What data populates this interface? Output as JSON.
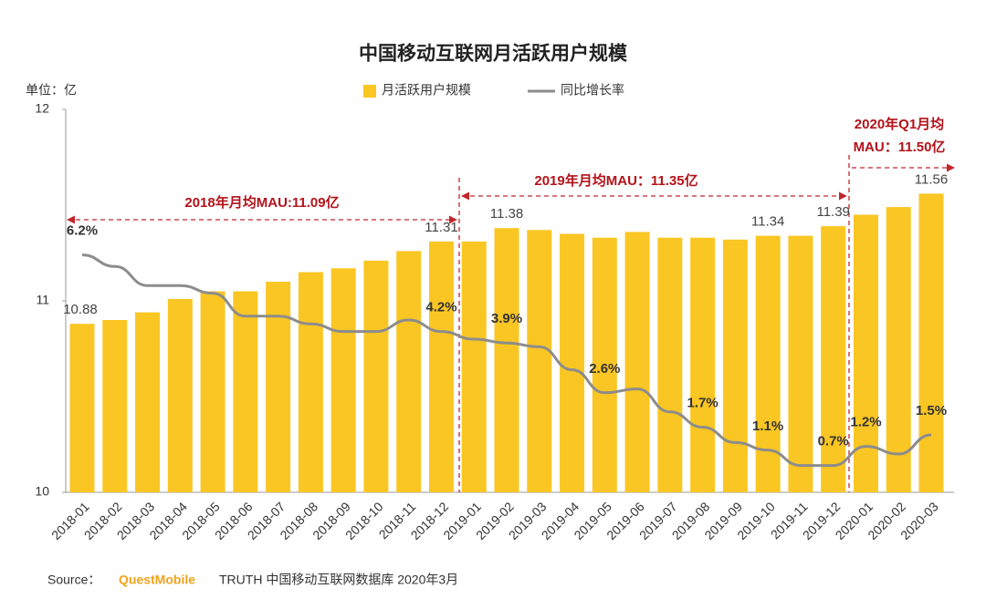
{
  "chart_data": {
    "type": "bar",
    "title": "中国移动互联网月活跃用户规模",
    "unit_label": "单位：亿",
    "categories": [
      "2018-01",
      "2018-02",
      "2018-03",
      "2018-04",
      "2018-05",
      "2018-06",
      "2018-07",
      "2018-08",
      "2018-09",
      "2018-10",
      "2018-11",
      "2018-12",
      "2019-01",
      "2019-02",
      "2019-03",
      "2019-04",
      "2019-05",
      "2019-06",
      "2019-07",
      "2019-08",
      "2019-09",
      "2019-10",
      "2019-11",
      "2019-12",
      "2020-01",
      "2020-02",
      "2020-03"
    ],
    "series": [
      {
        "name": "月活跃用户规模",
        "type": "bar",
        "color": "#fac623",
        "values": [
          10.88,
          10.9,
          10.94,
          11.01,
          11.05,
          11.05,
          11.1,
          11.15,
          11.17,
          11.21,
          11.26,
          11.31,
          11.31,
          11.38,
          11.37,
          11.35,
          11.33,
          11.36,
          11.33,
          11.33,
          11.32,
          11.34,
          11.34,
          11.39,
          11.45,
          11.49,
          11.56
        ],
        "value_labels": [
          "10.88",
          null,
          null,
          null,
          null,
          null,
          null,
          null,
          null,
          null,
          null,
          "11.31",
          null,
          "11.38",
          null,
          null,
          null,
          null,
          null,
          null,
          null,
          "11.34",
          null,
          "11.39",
          null,
          null,
          "11.56"
        ]
      },
      {
        "name": "同比增长率",
        "type": "line",
        "axis": "y2",
        "color": "#8c8c8c",
        "values": [
          6.2,
          5.9,
          5.4,
          5.4,
          5.2,
          4.6,
          4.6,
          4.4,
          4.2,
          4.2,
          4.5,
          4.2,
          4.0,
          3.9,
          3.8,
          3.2,
          2.6,
          2.7,
          2.1,
          1.7,
          1.3,
          1.1,
          0.7,
          0.7,
          1.2,
          1.0,
          1.5
        ],
        "value_labels": [
          "6.2%",
          null,
          null,
          null,
          null,
          null,
          null,
          null,
          null,
          null,
          null,
          "4.2%",
          null,
          "3.9%",
          null,
          null,
          "2.6%",
          null,
          null,
          "1.7%",
          null,
          "1.1%",
          null,
          "0.7%",
          "1.2%",
          null,
          "1.5%"
        ]
      }
    ],
    "ylim": [
      10,
      12
    ],
    "yticks": [
      10,
      11,
      12
    ],
    "y2lim": [
      0,
      10
    ],
    "grid": false,
    "annotations": [
      "2018年月均MAU:11.09亿",
      "2019年月均MAU：11.35亿",
      "2020年Q1月均",
      "MAU：11.50亿"
    ]
  },
  "source": {
    "prefix": "Source：",
    "brand": "QuestMobile",
    "text": "TRUTH 中国移动互联网数据库 2020年3月"
  }
}
